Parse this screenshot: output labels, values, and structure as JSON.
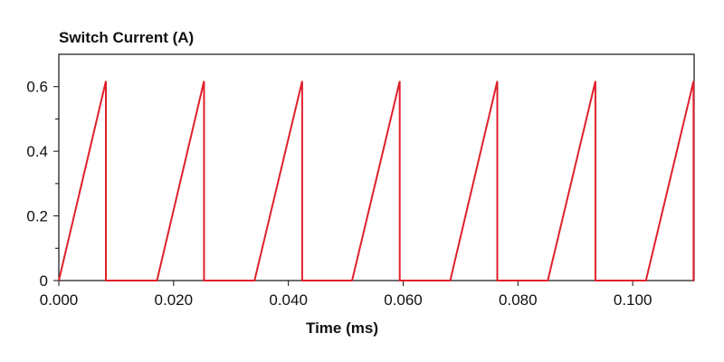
{
  "chart_data": {
    "type": "line",
    "title": "Switch Current (A)",
    "xlabel": "Time (ms)",
    "ylabel": "",
    "xlim": [
      0,
      0.1107
    ],
    "ylim": [
      0,
      0.7
    ],
    "grid": false,
    "line_color": "#e0202a",
    "axis_color": "#111111",
    "x_ticks": [
      {
        "value": 0.0,
        "label": "0.000"
      },
      {
        "value": 0.02,
        "label": "0.020"
      },
      {
        "value": 0.04,
        "label": "0.040"
      },
      {
        "value": 0.06,
        "label": "0.060"
      },
      {
        "value": 0.08,
        "label": "0.080"
      },
      {
        "value": 0.1,
        "label": "0.100"
      }
    ],
    "y_ticks": [
      {
        "value": 0,
        "label": "0"
      },
      {
        "value": 0.2,
        "label": "0.2"
      },
      {
        "value": 0.4,
        "label": "0.4"
      },
      {
        "value": 0.6,
        "label": "0.6"
      }
    ],
    "y_minor_ticks": [
      0.1,
      0.3,
      0.5
    ],
    "series": [
      {
        "x": [
          0.0,
          0.0082,
          0.0082,
          0.0082,
          0.0171,
          0.0253,
          0.0253,
          0.0253,
          0.0341,
          0.0424,
          0.0424,
          0.0424,
          0.0511,
          0.0594,
          0.0594,
          0.0594,
          0.0682,
          0.0764,
          0.0764,
          0.0764,
          0.0852,
          0.0935,
          0.0935,
          0.0935,
          0.1023,
          0.1106,
          0.1106,
          0.1106,
          0.1107
        ],
        "y": [
          0.0,
          0.617,
          0.617,
          0.0,
          0.0,
          0.617,
          0.617,
          0.0,
          0.0,
          0.617,
          0.617,
          0.0,
          0.0,
          0.617,
          0.617,
          0.0,
          0.0,
          0.617,
          0.617,
          0.0,
          0.0,
          0.617,
          0.617,
          0.0,
          0.0,
          0.617,
          0.617,
          0.0,
          0.0
        ]
      }
    ]
  }
}
